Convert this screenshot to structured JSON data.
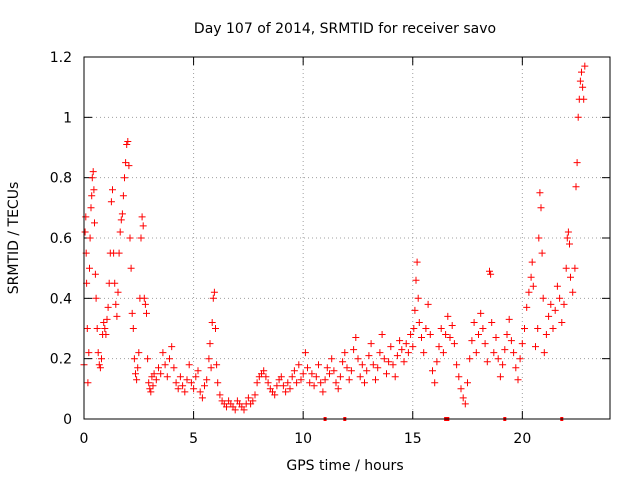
{
  "chart_data": {
    "type": "scatter",
    "title": "Day 107 of 2014, SRMTID for receiver savo",
    "xlabel": "GPS time / hours",
    "ylabel": "SRMTID / TECUs",
    "xlim": [
      0,
      24
    ],
    "ylim": [
      0,
      1.2
    ],
    "xticks": [
      0,
      5,
      10,
      15,
      20
    ],
    "xtick_labels": [
      "0",
      "5",
      "10",
      "15",
      "20"
    ],
    "yticks": [
      0,
      0.2,
      0.4,
      0.6,
      0.8,
      1.0,
      1.2
    ],
    "ytick_labels": [
      "0",
      "0.2",
      "0.4",
      "0.6",
      "0.8",
      "1",
      "1.2"
    ],
    "grid": true,
    "marker": "plus",
    "color": "#ff0000",
    "series": [
      {
        "name": "SRMTID",
        "points": [
          [
            0.0,
            0.18
          ],
          [
            0.05,
            0.62
          ],
          [
            0.08,
            0.67
          ],
          [
            0.1,
            0.55
          ],
          [
            0.12,
            0.45
          ],
          [
            0.15,
            0.3
          ],
          [
            0.18,
            0.12
          ],
          [
            0.22,
            0.22
          ],
          [
            0.25,
            0.5
          ],
          [
            0.28,
            0.6
          ],
          [
            0.32,
            0.7
          ],
          [
            0.35,
            0.74
          ],
          [
            0.38,
            0.8
          ],
          [
            0.42,
            0.82
          ],
          [
            0.45,
            0.76
          ],
          [
            0.48,
            0.65
          ],
          [
            0.52,
            0.48
          ],
          [
            0.55,
            0.4
          ],
          [
            0.6,
            0.3
          ],
          [
            0.65,
            0.22
          ],
          [
            0.7,
            0.18
          ],
          [
            0.75,
            0.17
          ],
          [
            0.8,
            0.2
          ],
          [
            0.85,
            0.28
          ],
          [
            0.9,
            0.32
          ],
          [
            0.95,
            0.3
          ],
          [
            1.0,
            0.28
          ],
          [
            1.05,
            0.33
          ],
          [
            1.1,
            0.37
          ],
          [
            1.15,
            0.45
          ],
          [
            1.2,
            0.55
          ],
          [
            1.25,
            0.72
          ],
          [
            1.3,
            0.76
          ],
          [
            1.35,
            0.55
          ],
          [
            1.4,
            0.45
          ],
          [
            1.45,
            0.38
          ],
          [
            1.5,
            0.34
          ],
          [
            1.55,
            0.42
          ],
          [
            1.6,
            0.55
          ],
          [
            1.65,
            0.62
          ],
          [
            1.7,
            0.66
          ],
          [
            1.75,
            0.68
          ],
          [
            1.8,
            0.74
          ],
          [
            1.85,
            0.8
          ],
          [
            1.9,
            0.85
          ],
          [
            1.95,
            0.91
          ],
          [
            2.0,
            0.92
          ],
          [
            2.05,
            0.84
          ],
          [
            2.1,
            0.6
          ],
          [
            2.15,
            0.5
          ],
          [
            2.2,
            0.35
          ],
          [
            2.25,
            0.3
          ],
          [
            2.3,
            0.2
          ],
          [
            2.35,
            0.15
          ],
          [
            2.4,
            0.13
          ],
          [
            2.45,
            0.17
          ],
          [
            2.5,
            0.22
          ],
          [
            2.55,
            0.4
          ],
          [
            2.6,
            0.6
          ],
          [
            2.65,
            0.67
          ],
          [
            2.7,
            0.64
          ],
          [
            2.75,
            0.4
          ],
          [
            2.8,
            0.38
          ],
          [
            2.85,
            0.35
          ],
          [
            2.9,
            0.2
          ],
          [
            2.95,
            0.12
          ],
          [
            3.0,
            0.1
          ],
          [
            3.05,
            0.09
          ],
          [
            3.1,
            0.14
          ],
          [
            3.15,
            0.11
          ],
          [
            3.2,
            0.15
          ],
          [
            3.3,
            0.13
          ],
          [
            3.4,
            0.17
          ],
          [
            3.5,
            0.15
          ],
          [
            3.6,
            0.22
          ],
          [
            3.7,
            0.18
          ],
          [
            3.8,
            0.14
          ],
          [
            3.9,
            0.2
          ],
          [
            4.0,
            0.24
          ],
          [
            4.1,
            0.17
          ],
          [
            4.2,
            0.12
          ],
          [
            4.3,
            0.1
          ],
          [
            4.4,
            0.14
          ],
          [
            4.5,
            0.11
          ],
          [
            4.6,
            0.09
          ],
          [
            4.7,
            0.13
          ],
          [
            4.8,
            0.18
          ],
          [
            4.9,
            0.12
          ],
          [
            5.0,
            0.1
          ],
          [
            5.1,
            0.14
          ],
          [
            5.2,
            0.16
          ],
          [
            5.3,
            0.09
          ],
          [
            5.4,
            0.07
          ],
          [
            5.5,
            0.11
          ],
          [
            5.6,
            0.13
          ],
          [
            5.7,
            0.2
          ],
          [
            5.75,
            0.25
          ],
          [
            5.8,
            0.17
          ],
          [
            5.85,
            0.32
          ],
          [
            5.9,
            0.4
          ],
          [
            5.95,
            0.42
          ],
          [
            6.0,
            0.3
          ],
          [
            6.05,
            0.18
          ],
          [
            6.1,
            0.12
          ],
          [
            6.2,
            0.08
          ],
          [
            6.3,
            0.06
          ],
          [
            6.4,
            0.05
          ],
          [
            6.5,
            0.04
          ],
          [
            6.6,
            0.06
          ],
          [
            6.7,
            0.05
          ],
          [
            6.8,
            0.04
          ],
          [
            6.9,
            0.03
          ],
          [
            7.0,
            0.06
          ],
          [
            7.1,
            0.05
          ],
          [
            7.2,
            0.04
          ],
          [
            7.3,
            0.03
          ],
          [
            7.4,
            0.05
          ],
          [
            7.5,
            0.07
          ],
          [
            7.6,
            0.05
          ],
          [
            7.7,
            0.06
          ],
          [
            7.8,
            0.08
          ],
          [
            7.9,
            0.12
          ],
          [
            8.0,
            0.14
          ],
          [
            8.1,
            0.15
          ],
          [
            8.2,
            0.16
          ],
          [
            8.3,
            0.14
          ],
          [
            8.4,
            0.12
          ],
          [
            8.5,
            0.1
          ],
          [
            8.6,
            0.09
          ],
          [
            8.7,
            0.08
          ],
          [
            8.8,
            0.11
          ],
          [
            8.9,
            0.13
          ],
          [
            9.0,
            0.14
          ],
          [
            9.1,
            0.11
          ],
          [
            9.2,
            0.09
          ],
          [
            9.3,
            0.12
          ],
          [
            9.4,
            0.1
          ],
          [
            9.5,
            0.14
          ],
          [
            9.6,
            0.16
          ],
          [
            9.7,
            0.12
          ],
          [
            9.8,
            0.18
          ],
          [
            9.9,
            0.13
          ],
          [
            10.0,
            0.15
          ],
          [
            10.1,
            0.22
          ],
          [
            10.2,
            0.17
          ],
          [
            10.3,
            0.12
          ],
          [
            10.4,
            0.15
          ],
          [
            10.5,
            0.11
          ],
          [
            10.6,
            0.14
          ],
          [
            10.7,
            0.18
          ],
          [
            10.8,
            0.12
          ],
          [
            10.9,
            0.09
          ],
          [
            11.0,
            0.13
          ],
          [
            11.1,
            0.17
          ],
          [
            11.2,
            0.15
          ],
          [
            11.3,
            0.2
          ],
          [
            11.4,
            0.16
          ],
          [
            11.5,
            0.12
          ],
          [
            11.6,
            0.1
          ],
          [
            11.7,
            0.14
          ],
          [
            11.8,
            0.19
          ],
          [
            11.9,
            0.22
          ],
          [
            12.0,
            0.17
          ],
          [
            12.1,
            0.13
          ],
          [
            12.2,
            0.16
          ],
          [
            12.3,
            0.23
          ],
          [
            12.4,
            0.27
          ],
          [
            12.5,
            0.2
          ],
          [
            12.6,
            0.14
          ],
          [
            12.7,
            0.18
          ],
          [
            12.8,
            0.12
          ],
          [
            12.9,
            0.16
          ],
          [
            13.0,
            0.21
          ],
          [
            13.1,
            0.25
          ],
          [
            13.2,
            0.18
          ],
          [
            13.3,
            0.13
          ],
          [
            13.4,
            0.17
          ],
          [
            13.5,
            0.22
          ],
          [
            13.6,
            0.28
          ],
          [
            13.7,
            0.2
          ],
          [
            13.8,
            0.15
          ],
          [
            13.9,
            0.19
          ],
          [
            14.0,
            0.24
          ],
          [
            14.1,
            0.18
          ],
          [
            14.2,
            0.14
          ],
          [
            14.3,
            0.21
          ],
          [
            14.4,
            0.26
          ],
          [
            14.5,
            0.23
          ],
          [
            14.6,
            0.19
          ],
          [
            14.7,
            0.25
          ],
          [
            14.8,
            0.22
          ],
          [
            14.9,
            0.28
          ],
          [
            15.0,
            0.24
          ],
          [
            15.05,
            0.3
          ],
          [
            15.1,
            0.36
          ],
          [
            15.15,
            0.46
          ],
          [
            15.2,
            0.52
          ],
          [
            15.25,
            0.4
          ],
          [
            15.3,
            0.32
          ],
          [
            15.4,
            0.27
          ],
          [
            15.5,
            0.22
          ],
          [
            15.6,
            0.3
          ],
          [
            15.7,
            0.38
          ],
          [
            15.8,
            0.28
          ],
          [
            15.9,
            0.16
          ],
          [
            16.0,
            0.12
          ],
          [
            16.1,
            0.19
          ],
          [
            16.2,
            0.24
          ],
          [
            16.3,
            0.3
          ],
          [
            16.4,
            0.22
          ],
          [
            16.5,
            0.28
          ],
          [
            16.6,
            0.34
          ],
          [
            16.7,
            0.27
          ],
          [
            16.8,
            0.31
          ],
          [
            16.9,
            0.25
          ],
          [
            17.0,
            0.18
          ],
          [
            17.1,
            0.14
          ],
          [
            17.2,
            0.1
          ],
          [
            17.3,
            0.07
          ],
          [
            17.4,
            0.05
          ],
          [
            17.5,
            0.12
          ],
          [
            17.6,
            0.2
          ],
          [
            17.7,
            0.26
          ],
          [
            17.8,
            0.32
          ],
          [
            17.9,
            0.22
          ],
          [
            18.0,
            0.28
          ],
          [
            18.1,
            0.35
          ],
          [
            18.2,
            0.3
          ],
          [
            18.3,
            0.25
          ],
          [
            18.4,
            0.19
          ],
          [
            18.5,
            0.49
          ],
          [
            18.55,
            0.48
          ],
          [
            18.6,
            0.32
          ],
          [
            18.7,
            0.22
          ],
          [
            18.8,
            0.27
          ],
          [
            18.9,
            0.2
          ],
          [
            19.0,
            0.14
          ],
          [
            19.1,
            0.18
          ],
          [
            19.2,
            0.23
          ],
          [
            19.3,
            0.28
          ],
          [
            19.4,
            0.33
          ],
          [
            19.5,
            0.26
          ],
          [
            19.6,
            0.22
          ],
          [
            19.7,
            0.17
          ],
          [
            19.8,
            0.13
          ],
          [
            19.9,
            0.2
          ],
          [
            20.0,
            0.25
          ],
          [
            20.1,
            0.3
          ],
          [
            20.2,
            0.37
          ],
          [
            20.3,
            0.42
          ],
          [
            20.4,
            0.47
          ],
          [
            20.45,
            0.52
          ],
          [
            20.5,
            0.44
          ],
          [
            20.6,
            0.24
          ],
          [
            20.7,
            0.3
          ],
          [
            20.75,
            0.6
          ],
          [
            20.8,
            0.75
          ],
          [
            20.85,
            0.7
          ],
          [
            20.9,
            0.55
          ],
          [
            20.95,
            0.4
          ],
          [
            21.0,
            0.22
          ],
          [
            21.1,
            0.28
          ],
          [
            21.2,
            0.34
          ],
          [
            21.3,
            0.38
          ],
          [
            21.4,
            0.3
          ],
          [
            21.5,
            0.36
          ],
          [
            21.6,
            0.44
          ],
          [
            21.7,
            0.4
          ],
          [
            21.8,
            0.32
          ],
          [
            21.9,
            0.38
          ],
          [
            22.0,
            0.5
          ],
          [
            22.05,
            0.6
          ],
          [
            22.1,
            0.62
          ],
          [
            22.15,
            0.58
          ],
          [
            22.2,
            0.47
          ],
          [
            22.3,
            0.42
          ],
          [
            22.4,
            0.5
          ],
          [
            22.45,
            0.77
          ],
          [
            22.5,
            0.85
          ],
          [
            22.55,
            1.0
          ],
          [
            22.6,
            1.06
          ],
          [
            22.65,
            1.12
          ],
          [
            22.7,
            1.15
          ],
          [
            22.75,
            1.1
          ],
          [
            22.8,
            1.06
          ],
          [
            22.85,
            1.17
          ]
        ]
      }
    ],
    "x_axis_marker_positions": [
      11.0,
      11.9,
      16.5,
      16.6,
      19.2,
      21.8
    ]
  }
}
